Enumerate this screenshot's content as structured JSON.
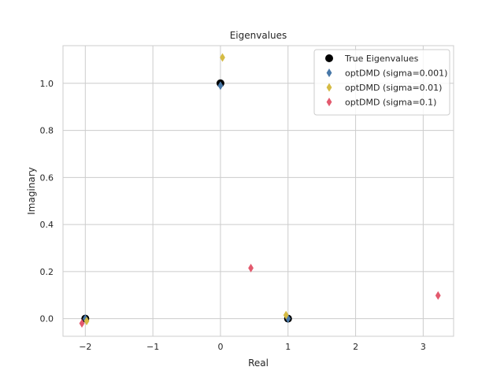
{
  "chart_data": {
    "type": "scatter",
    "title": "Eigenvalues",
    "xlabel": "Real",
    "ylabel": "Imaginary",
    "xlim": [
      -2.33,
      3.45
    ],
    "ylim": [
      -0.075,
      1.16
    ],
    "xticks": [
      -2,
      -1,
      0,
      1,
      2,
      3
    ],
    "xtick_labels": [
      "−2",
      "−1",
      "0",
      "1",
      "2",
      "3"
    ],
    "yticks": [
      0.0,
      0.2,
      0.4,
      0.6,
      0.8,
      1.0
    ],
    "ytick_labels": [
      "0.0",
      "0.2",
      "0.4",
      "0.6",
      "0.8",
      "1.0"
    ],
    "grid": true,
    "legend_position": "top-right",
    "series": [
      {
        "name": "True Eigenvalues",
        "marker": "circle",
        "color": "#000000",
        "points": [
          {
            "x": -2.0,
            "y": 0.0
          },
          {
            "x": 0.0,
            "y": 1.0
          },
          {
            "x": 1.0,
            "y": 0.0
          }
        ]
      },
      {
        "name": "optDMD (sigma=0.001)",
        "marker": "diamond",
        "color": "#4878a8",
        "points": [
          {
            "x": -2.0,
            "y": 0.0
          },
          {
            "x": 0.0,
            "y": 0.99
          },
          {
            "x": 1.0,
            "y": 0.0
          }
        ]
      },
      {
        "name": "optDMD (sigma=0.01)",
        "marker": "diamond",
        "color": "#d5bb44",
        "points": [
          {
            "x": -1.98,
            "y": -0.01
          },
          {
            "x": 0.03,
            "y": 1.11
          },
          {
            "x": 0.97,
            "y": 0.015
          }
        ]
      },
      {
        "name": "optDMD (sigma=0.1)",
        "marker": "diamond",
        "color": "#e35a6e",
        "points": [
          {
            "x": -2.05,
            "y": -0.02
          },
          {
            "x": 0.45,
            "y": 0.215
          },
          {
            "x": 3.22,
            "y": 0.098
          }
        ]
      }
    ]
  }
}
